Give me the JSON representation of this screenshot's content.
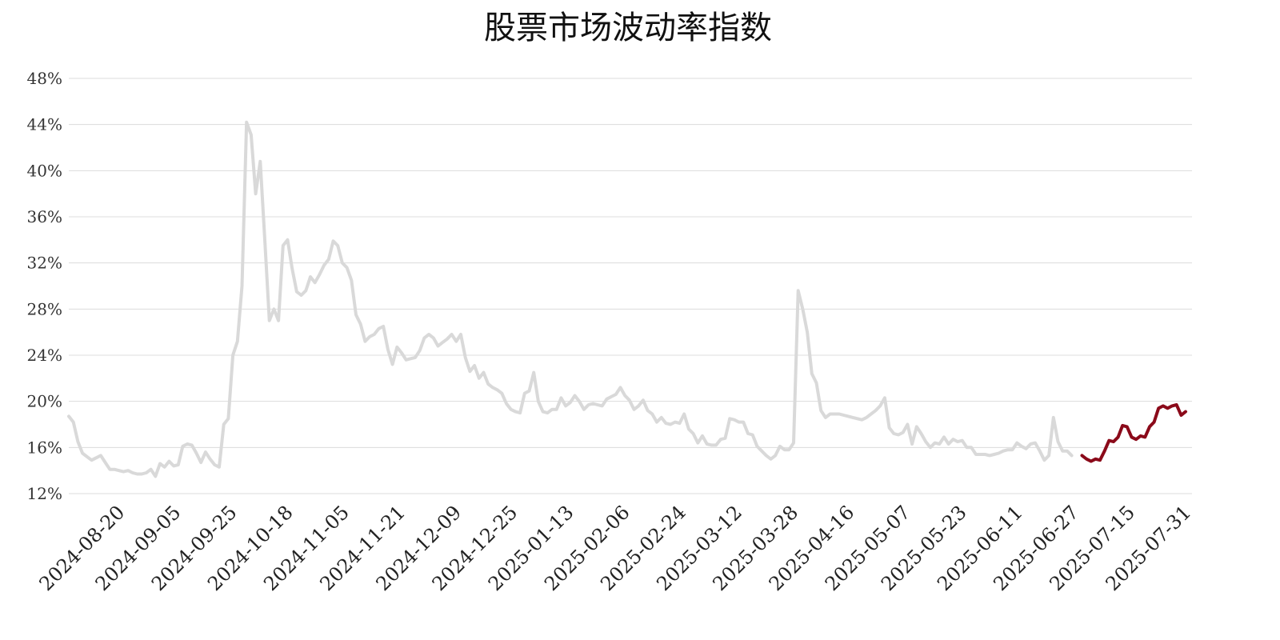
{
  "chart_data": {
    "type": "line",
    "title": "股票市场波动率指数",
    "xlabel": "",
    "ylabel": "",
    "ylim": [
      0.12,
      0.48
    ],
    "yticks": [
      "12%",
      "16%",
      "20%",
      "24%",
      "28%",
      "32%",
      "36%",
      "40%",
      "44%",
      "48%"
    ],
    "xticks": [
      "2024-08-20",
      "2024-09-05",
      "2024-09-25",
      "2024-10-18",
      "2024-11-05",
      "2024-11-21",
      "2024-12-09",
      "2024-12-25",
      "2025-01-13",
      "2025-02-06",
      "2025-02-24",
      "2025-03-12",
      "2025-03-28",
      "2025-04-16",
      "2025-05-07",
      "2025-05-23",
      "2025-06-11",
      "2025-06-27",
      "2025-07-15",
      "2025-07-31"
    ],
    "grid": true,
    "colors": {
      "history": "#d9d9d9",
      "recent": "#8b0a1a",
      "grid": "#dcdcdc"
    },
    "series": [
      {
        "values": [
          0.187,
          0.182,
          0.165,
          0.155,
          0.152,
          0.149,
          0.151,
          0.153,
          0.147,
          0.141,
          0.141,
          0.14,
          0.139,
          0.14,
          0.138,
          0.137,
          0.137,
          0.138,
          0.141,
          0.135,
          0.146,
          0.143,
          0.148,
          0.144,
          0.145,
          0.161,
          0.163,
          0.162,
          0.155,
          0.147,
          0.156,
          0.15,
          0.145,
          0.143,
          0.18,
          0.185,
          0.24,
          0.252,
          0.3,
          0.442,
          0.431,
          0.38,
          0.408,
          0.34,
          0.27,
          0.28,
          0.27,
          0.335,
          0.34,
          0.315,
          0.295,
          0.292,
          0.296,
          0.308,
          0.303,
          0.31,
          0.318,
          0.323,
          0.339,
          0.335,
          0.32,
          0.316,
          0.305,
          0.275,
          0.267,
          0.252,
          0.256,
          0.258,
          0.263,
          0.265,
          0.245,
          0.232,
          0.247,
          0.242,
          0.236,
          0.237,
          0.238,
          0.244,
          0.255,
          0.258,
          0.255,
          0.248,
          0.251,
          0.254,
          0.258,
          0.252,
          0.258,
          0.238,
          0.226,
          0.231,
          0.22,
          0.225,
          0.215,
          0.212,
          0.21,
          0.207,
          0.198,
          0.193,
          0.191,
          0.19,
          0.207,
          0.209,
          0.225,
          0.2,
          0.191,
          0.19,
          0.193,
          0.193,
          0.203,
          0.196,
          0.199,
          0.205,
          0.2,
          0.193,
          0.197,
          0.198,
          0.197,
          0.196,
          0.202,
          0.204,
          0.206,
          0.212,
          0.205,
          0.201,
          0.193,
          0.196,
          0.201,
          0.192,
          0.189,
          0.182,
          0.186,
          0.181,
          0.18,
          0.182,
          0.181,
          0.189,
          0.176,
          0.172,
          0.164,
          0.17,
          0.163,
          0.162,
          0.162,
          0.167,
          0.168,
          0.185,
          0.184,
          0.182,
          0.182,
          0.172,
          0.171,
          0.161,
          0.157,
          0.153,
          0.15,
          0.153,
          0.161,
          0.158,
          0.158,
          0.164,
          0.296,
          0.28,
          0.26,
          0.224,
          0.216,
          0.192,
          0.186,
          0.189,
          0.189,
          0.189,
          0.188,
          0.187,
          0.186,
          0.185,
          0.184,
          0.186,
          0.189,
          0.192,
          0.196,
          0.203,
          0.177,
          0.172,
          0.171,
          0.173,
          0.18,
          0.163,
          0.178,
          0.172,
          0.165,
          0.16,
          0.164,
          0.163,
          0.169,
          0.163,
          0.167,
          0.165,
          0.166,
          0.16,
          0.16,
          0.154,
          0.154,
          0.154,
          0.153,
          0.154,
          0.155,
          0.157,
          0.158,
          0.158,
          0.164,
          0.161,
          0.159,
          0.163,
          0.164,
          0.157,
          0.149,
          0.153,
          0.186,
          0.165,
          0.157,
          0.157,
          0.153,
          null,
          null,
          null,
          null,
          null,
          null,
          null,
          null,
          null,
          null,
          null,
          null,
          null,
          null,
          null,
          null,
          null,
          null,
          null,
          null,
          null,
          null,
          null,
          null,
          null
        ]
      },
      {
        "values": [
          null,
          null,
          null,
          null,
          null,
          null,
          null,
          null,
          null,
          null,
          null,
          null,
          null,
          null,
          null,
          null,
          null,
          null,
          null,
          null,
          null,
          null,
          null,
          null,
          null,
          null,
          null,
          null,
          null,
          null,
          null,
          null,
          null,
          null,
          null,
          null,
          null,
          null,
          null,
          null,
          null,
          null,
          null,
          null,
          null,
          null,
          null,
          null,
          null,
          null,
          null,
          null,
          null,
          null,
          null,
          null,
          null,
          null,
          null,
          null,
          null,
          null,
          null,
          null,
          null,
          null,
          null,
          null,
          null,
          null,
          null,
          null,
          null,
          null,
          null,
          null,
          null,
          null,
          null,
          null,
          null,
          null,
          null,
          null,
          null,
          null,
          null,
          null,
          null,
          null,
          null,
          null,
          null,
          null,
          null,
          null,
          null,
          null,
          null,
          null,
          null,
          null,
          null,
          null,
          null,
          null,
          null,
          null,
          null,
          null,
          null,
          null,
          null,
          null,
          null,
          null,
          null,
          null,
          null,
          null,
          null,
          null,
          null,
          null,
          null,
          null,
          null,
          null,
          null,
          null,
          null,
          null,
          null,
          null,
          null,
          null,
          null,
          null,
          null,
          null,
          null,
          null,
          null,
          null,
          null,
          null,
          null,
          null,
          null,
          null,
          null,
          null,
          null,
          null,
          null,
          null,
          null,
          null,
          null,
          null,
          null,
          null,
          null,
          null,
          null,
          null,
          null,
          null,
          null,
          null,
          null,
          null,
          null,
          null,
          null,
          null,
          null,
          null,
          null,
          null,
          null,
          null,
          null,
          null,
          null,
          null,
          null,
          null,
          null,
          null,
          null,
          null,
          null,
          null,
          null,
          null,
          null,
          null,
          null,
          null,
          null,
          null,
          null,
          null,
          null,
          null,
          null,
          null,
          null,
          null,
          null,
          null,
          null,
          null,
          null,
          null,
          null,
          null,
          null,
          null,
          null,
          null,
          null,
          null,
          null,
          0.153,
          0.15,
          0.148,
          0.15,
          0.149,
          0.157,
          0.166,
          0.165,
          0.169,
          0.179,
          0.178,
          0.169,
          0.167,
          0.17,
          0.169,
          0.178,
          0.182,
          0.194,
          0.196,
          0.194,
          0.196,
          0.197,
          0.188,
          0.191
        ]
      }
    ]
  }
}
